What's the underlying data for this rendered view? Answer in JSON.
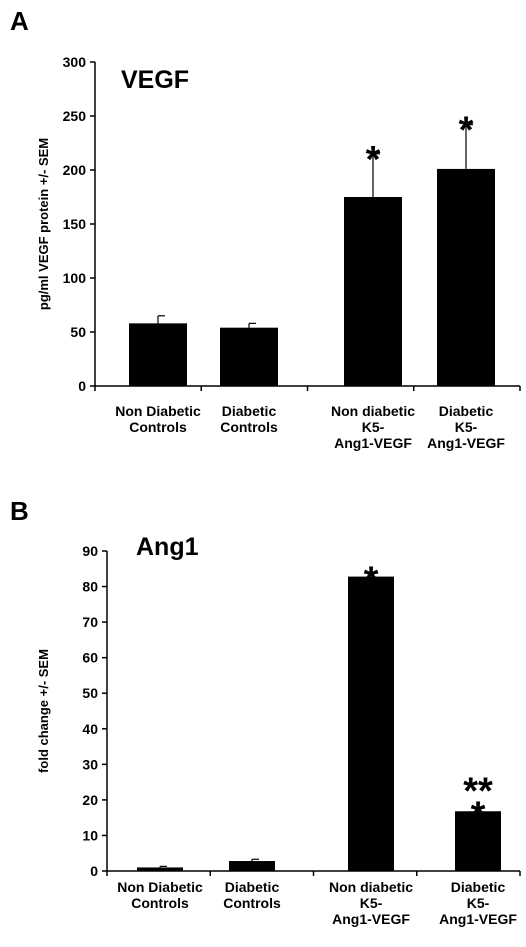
{
  "chart_data": [
    {
      "type": "bar",
      "panel_label": "A",
      "title": "VEGF",
      "ylabel": "pg/ml VEGF protein +/- SEM",
      "xlabel": "",
      "ylim": [
        0,
        300
      ],
      "yticks": [
        0,
        50,
        100,
        150,
        200,
        250,
        300
      ],
      "categories": [
        [
          "Non Diabetic",
          "Controls"
        ],
        [
          "Diabetic",
          "Controls"
        ],
        [
          "Non diabetic",
          "K5-",
          "Ang1-VEGF"
        ],
        [
          "Diabetic",
          "K5-",
          "Ang1-VEGF"
        ]
      ],
      "values": [
        58,
        54,
        175,
        201
      ],
      "errors": [
        7,
        4,
        40,
        41
      ],
      "annotations": [
        "",
        "",
        "*",
        "*"
      ],
      "bar_color": "#000000",
      "grid": false,
      "legend": "none"
    },
    {
      "type": "bar",
      "panel_label": "B",
      "title": "Ang1",
      "ylabel": "fold change +/- SEM",
      "xlabel": "",
      "ylim": [
        0,
        90
      ],
      "yticks": [
        0,
        10,
        20,
        30,
        40,
        50,
        60,
        70,
        80,
        90
      ],
      "categories": [
        [
          "Non Diabetic",
          "Controls"
        ],
        [
          "Diabetic",
          "Controls"
        ],
        [
          "Non diabetic",
          "K5-",
          "Ang1-VEGF"
        ],
        [
          "Diabetic",
          "K5-",
          "Ang1-VEGF"
        ]
      ],
      "values": [
        1,
        2.8,
        82.8,
        16.8
      ],
      "errors": [
        0.3,
        0.5,
        0,
        0
      ],
      "annotations": [
        "",
        "",
        "*",
        "**\n*"
      ],
      "bar_color": "#000000",
      "grid": false,
      "legend": "none"
    }
  ]
}
